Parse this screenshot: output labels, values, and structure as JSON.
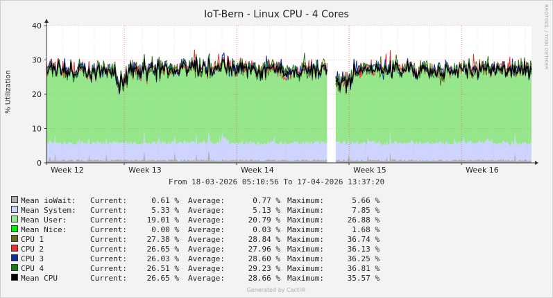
{
  "title": "IoT-Bern - Linux CPU - 4 Cores",
  "vertical_text": "RRDTOOL / TOBI OETIKER",
  "date_range": "From 18-03-2026 05:10:56 To 17-04-2026 13:37:20",
  "footer": "Generated by Cacti®",
  "chart_data": {
    "type": "area",
    "title": "IoT-Bern - Linux CPU - 4 Cores",
    "ylabel": "% Utilization",
    "ylim": [
      0,
      40
    ],
    "yticks": [
      0,
      10,
      20,
      30,
      40
    ],
    "xticks": [
      "Week 12",
      "Week 13",
      "Week 14",
      "Week 15",
      "Week 16"
    ],
    "stacked_series": [
      {
        "name": "Mean ioWait",
        "color": "#b0b0b0",
        "approx_level": 0.77
      },
      {
        "name": "Mean System",
        "color": "#ccd4ff",
        "approx_level": 5.13
      },
      {
        "name": "Mean User",
        "color": "#96e68c",
        "approx_level": 20.79
      },
      {
        "name": "Mean Nice",
        "color": "#00ee00",
        "approx_level": 0.03
      }
    ],
    "line_series": [
      {
        "name": "CPU 1",
        "color": "#6b6b20",
        "approx_level": 28.84
      },
      {
        "name": "CPU 2",
        "color": "#e83030",
        "approx_level": 27.96
      },
      {
        "name": "CPU 3",
        "color": "#102ea0",
        "approx_level": 28.6
      },
      {
        "name": "CPU 4",
        "color": "#1a7a1a",
        "approx_level": 29.23
      },
      {
        "name": "Mean CPU",
        "color": "#000000",
        "approx_level": 28.66
      }
    ]
  },
  "legend": {
    "labels": {
      "current": "Current:",
      "average": "Average:",
      "maximum": "Maximum:",
      "unit": "%"
    },
    "items": [
      {
        "name": "Mean ioWait:",
        "color": "#b0b0b0",
        "current": "0.61",
        "average": "0.77",
        "maximum": "5.66"
      },
      {
        "name": "Mean System:",
        "color": "#ccd4ff",
        "current": "5.33",
        "average": "5.13",
        "maximum": "7.85"
      },
      {
        "name": "Mean User:",
        "color": "#96e68c",
        "current": "19.01",
        "average": "20.79",
        "maximum": "26.88"
      },
      {
        "name": "Mean Nice:",
        "color": "#00ee00",
        "current": "0.00",
        "average": "0.03",
        "maximum": "1.68"
      },
      {
        "name": "CPU 1",
        "color": "#6b6b20",
        "current": "27.38",
        "average": "28.84",
        "maximum": "36.74"
      },
      {
        "name": "CPU 2",
        "color": "#e83030",
        "current": "26.65",
        "average": "27.96",
        "maximum": "36.13"
      },
      {
        "name": "CPU 3",
        "color": "#102ea0",
        "current": "26.03",
        "average": "28.60",
        "maximum": "36.25"
      },
      {
        "name": "CPU 4",
        "color": "#1a7a1a",
        "current": "26.51",
        "average": "29.23",
        "maximum": "36.81"
      },
      {
        "name": "Mean CPU",
        "color": "#000000",
        "current": "26.65",
        "average": "28.66",
        "maximum": "35.57"
      }
    ]
  }
}
